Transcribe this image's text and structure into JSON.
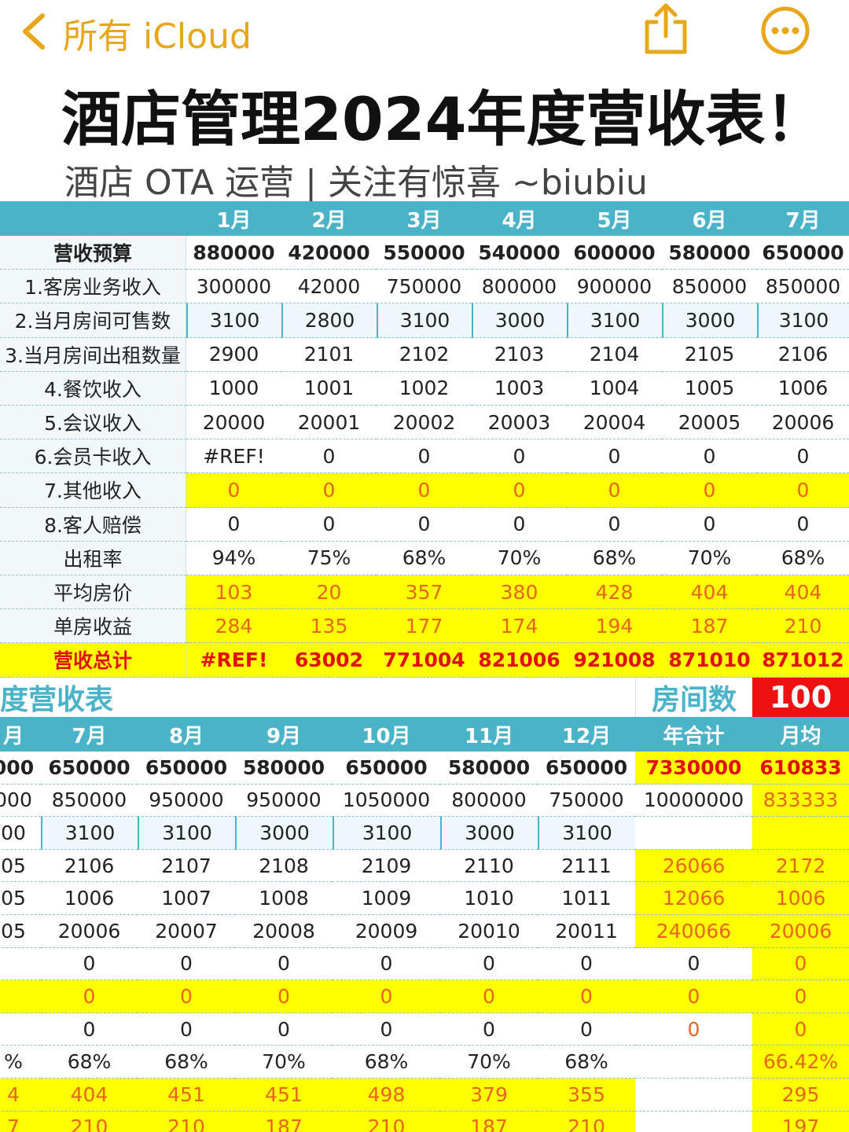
{
  "nav": {
    "back": "所有 iCloud"
  },
  "header": {
    "title": "酒店管理2024年度营收表！",
    "subtitle": "酒店 OTA 运营 | 关注有惊喜 ~biubiu"
  },
  "table1": {
    "header": [
      "1月",
      "2月",
      "3月",
      "4月",
      "5月",
      "6月",
      "7月"
    ],
    "rows": [
      {
        "label": "营收预算",
        "cells": [
          880000,
          420000,
          550000,
          540000,
          600000,
          580000,
          650000
        ]
      },
      {
        "label": "1.客房业务收入",
        "cells": [
          300000,
          42000,
          750000,
          800000,
          900000,
          850000,
          850000
        ]
      },
      {
        "label": "2.当月房间可售数",
        "cells": [
          3100,
          2800,
          3100,
          3000,
          3100,
          3000,
          3100
        ]
      },
      {
        "label": "3.当月房间出租数量",
        "cells": [
          2900,
          2101,
          2102,
          2103,
          2104,
          2105,
          2106
        ]
      },
      {
        "label": "4.餐饮收入",
        "cells": [
          1000,
          1001,
          1002,
          1003,
          1004,
          1005,
          1006
        ]
      },
      {
        "label": "5.会议收入",
        "cells": [
          20000,
          20001,
          20002,
          20003,
          20004,
          20005,
          20006
        ]
      },
      {
        "label": "6.会员卡收入",
        "cells": [
          "#REF!",
          0,
          0,
          0,
          0,
          0,
          0
        ]
      },
      {
        "label": "7.其他收入",
        "cells": [
          0,
          0,
          0,
          0,
          0,
          0,
          0
        ]
      },
      {
        "label": "8.客人赔偿",
        "cells": [
          0,
          0,
          0,
          0,
          0,
          0,
          0
        ]
      },
      {
        "label": "出租率",
        "cells": [
          "94%",
          "75%",
          "68%",
          "70%",
          "68%",
          "70%",
          "68%"
        ]
      },
      {
        "label": "平均房价",
        "cells": [
          103,
          20,
          357,
          380,
          428,
          404,
          404
        ]
      },
      {
        "label": "单房收益",
        "cells": [
          284,
          135,
          177,
          174,
          194,
          187,
          210
        ]
      },
      {
        "label": "营收总计",
        "cells": [
          "#REF!",
          63002,
          771004,
          821006,
          921008,
          871010,
          871012
        ]
      }
    ]
  },
  "table2": {
    "title": "度营收表",
    "room_label": "房间数",
    "room_count": 100,
    "header": [
      "月",
      "7月",
      "8月",
      "9月",
      "10月",
      "11月",
      "12月",
      "年合计",
      "月均"
    ],
    "rows": [
      [
        "000",
        650000,
        650000,
        580000,
        650000,
        580000,
        650000,
        7330000,
        610833
      ],
      [
        "000",
        850000,
        950000,
        950000,
        1050000,
        800000,
        750000,
        10000000,
        833333
      ],
      [
        "00",
        3100,
        3100,
        3000,
        3100,
        3000,
        3100,
        null,
        null
      ],
      [
        "05",
        2106,
        2107,
        2108,
        2109,
        2110,
        2111,
        26066,
        2172
      ],
      [
        "05",
        1006,
        1007,
        1008,
        1009,
        1010,
        1011,
        12066,
        1006
      ],
      [
        "05",
        20006,
        20007,
        20008,
        20009,
        20010,
        20011,
        240066,
        20006
      ],
      [
        null,
        0,
        0,
        0,
        0,
        0,
        0,
        0,
        0
      ],
      [
        null,
        0,
        0,
        0,
        0,
        0,
        0,
        0,
        0
      ],
      [
        null,
        0,
        0,
        0,
        0,
        0,
        0,
        0,
        0
      ],
      [
        "%",
        "68%",
        "68%",
        "70%",
        "68%",
        "70%",
        "68%",
        null,
        "66.42%"
      ],
      [
        "4",
        404,
        451,
        451,
        498,
        379,
        355,
        null,
        295
      ],
      [
        "7",
        210,
        210,
        187,
        210,
        187,
        210,
        null,
        197
      ]
    ]
  }
}
